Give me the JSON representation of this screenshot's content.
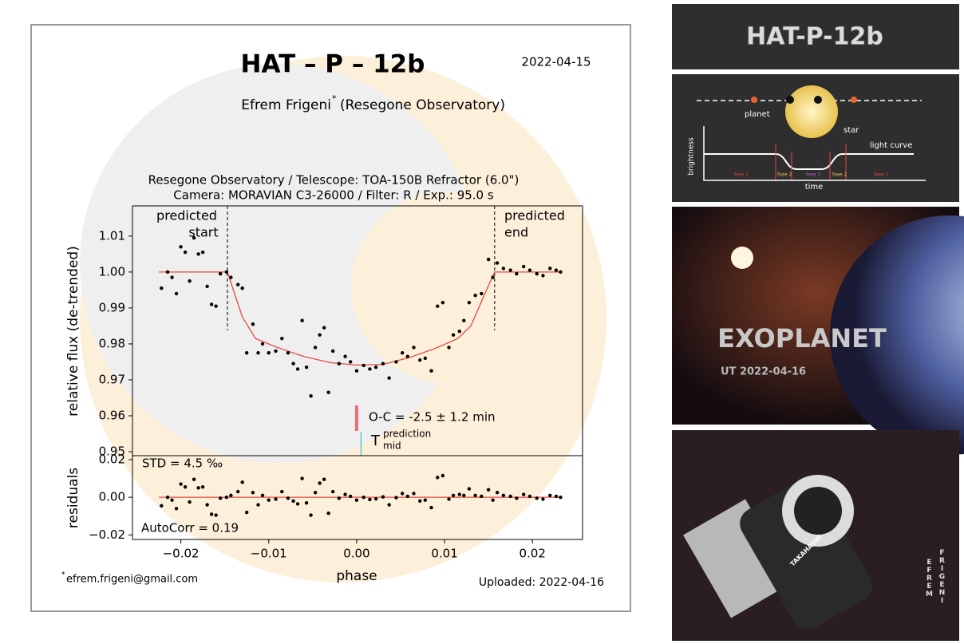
{
  "chart_data": [
    {
      "type": "scatter",
      "title": "HAT – P – 12b",
      "date": "2022-04-15",
      "author": "Efrem Frigeni",
      "author_mark": "*",
      "observatory": "(Resegone Observatory)",
      "subtitle": [
        "Resegone Observatory / Telescope: TOA-150B Refractor (6.0\")",
        "Camera: MORAVIAN C3-26000 / Filter: R / Exp.: 95.0 s"
      ],
      "ylabel": "relative flux (de-trended)",
      "annotations": {
        "start": [
          "predicted",
          "start"
        ],
        "end": [
          "predicted",
          "end"
        ],
        "oc": "O-C = -2.5 ± 1.2 min",
        "tmid": "T",
        "tmid_sup": "prediction",
        "tmid_sub": "mid"
      },
      "prediction_lines": [
        -0.0147,
        0.0157
      ],
      "markers": {
        "oc": 0.0,
        "tmid_prediction": 0.0005
      },
      "footer": {
        "mark": "*",
        "email": "efrem.frigeni@gmail.com",
        "uploaded": "Uploaded: 2022-04-16"
      },
      "xlim": [
        -0.0255,
        0.0257
      ],
      "ylim": [
        0.9489,
        1.0184
      ],
      "yticks": [
        0.95,
        0.96,
        0.97,
        0.98,
        0.99,
        {
          "value": 1.0,
          "label": "1.00"
        },
        1.01
      ],
      "x": [
        -0.0222,
        -0.0215,
        -0.021,
        -0.0205,
        -0.02,
        -0.0195,
        -0.019,
        -0.0185,
        -0.018,
        -0.0175,
        -0.017,
        -0.0165,
        -0.016,
        -0.0155,
        -0.0148,
        -0.0143,
        -0.0135,
        -0.013,
        -0.0125,
        -0.0118,
        -0.0112,
        -0.0107,
        -0.01,
        -0.0092,
        -0.0085,
        -0.0078,
        -0.0072,
        -0.0067,
        -0.0062,
        -0.0057,
        -0.0052,
        -0.0047,
        -0.0042,
        -0.0037,
        -0.0032,
        -0.0027,
        -0.002,
        -0.0013,
        -0.0007,
        0,
        0.0008,
        0.0015,
        0.0022,
        0.003,
        0.0037,
        0.0045,
        0.0052,
        0.0058,
        0.0065,
        0.0072,
        0.0078,
        0.0085,
        0.0092,
        0.0098,
        0.0105,
        0.011,
        0.0117,
        0.0122,
        0.0128,
        0.0135,
        0.0142,
        0.015,
        0.0155,
        0.016,
        0.0167,
        0.0175,
        0.0182,
        0.019,
        0.0197,
        0.0205,
        0.0212,
        0.022,
        0.0227,
        0.0232
      ],
      "series": [
        {
          "color": "#000000",
          "values": [
            0.9955,
            1.0,
            0.9985,
            0.994,
            1.007,
            1.0055,
            0.9975,
            1.0095,
            1.005,
            1.0055,
            0.996,
            0.991,
            0.9905,
            0.9995,
            1.0,
            0.9985,
            0.9965,
            0.9955,
            0.9775,
            0.9855,
            0.9775,
            0.98,
            0.9775,
            0.978,
            0.9815,
            0.9775,
            0.9745,
            0.973,
            0.9865,
            0.9735,
            0.9655,
            0.979,
            0.9825,
            0.9845,
            0.9665,
            0.978,
            0.9745,
            0.9765,
            0.975,
            0.9725,
            0.974,
            0.973,
            0.9735,
            0.9745,
            0.9705,
            0.975,
            0.9775,
            0.9765,
            0.979,
            0.9755,
            0.976,
            0.9725,
            0.9905,
            0.9915,
            0.979,
            0.9825,
            0.9835,
            0.9865,
            0.9915,
            0.9935,
            0.994,
            1.0035,
            0.9985,
            1.0025,
            1.001,
            1.0005,
            0.9995,
            1.0015,
            1.0005,
            0.9995,
            0.999,
            1.001,
            1.0005,
            1.0
          ]
        }
      ],
      "model": {
        "color": "#e8463c",
        "x": [
          -0.0225,
          -0.0147,
          -0.013,
          -0.0115,
          -0.009,
          -0.006,
          -0.003,
          0,
          0.003,
          0.006,
          0.009,
          0.0115,
          0.013,
          0.0145,
          0.0157,
          0.0232
        ],
        "values": [
          1.0,
          1.0,
          0.9875,
          0.9815,
          0.979,
          0.9765,
          0.9748,
          0.9741,
          0.9743,
          0.9762,
          0.9788,
          0.9815,
          0.985,
          0.9935,
          1.0,
          1.0
        ]
      }
    },
    {
      "type": "scatter",
      "ylabel": "residuals",
      "xlabel": "phase",
      "std": "STD = 4.5 ‰",
      "autocorr": "AutoCorr = 0.19",
      "xlim": [
        -0.0255,
        0.0257
      ],
      "ylim": [
        -0.0224,
        0.0221
      ],
      "xticks": [
        {
          "value": -0.02,
          "label": "−0.02"
        },
        {
          "value": -0.01,
          "label": "−0.01"
        },
        {
          "value": 0,
          "label": "0.00"
        },
        0.01,
        0.02
      ],
      "yticks": [
        {
          "value": -0.02,
          "label": "−0.02"
        },
        {
          "value": 0,
          "label": "0.00"
        },
        0.02
      ],
      "x": [
        -0.0222,
        -0.0215,
        -0.021,
        -0.0205,
        -0.02,
        -0.0195,
        -0.019,
        -0.0185,
        -0.018,
        -0.0175,
        -0.017,
        -0.0165,
        -0.016,
        -0.0155,
        -0.0148,
        -0.0143,
        -0.0135,
        -0.013,
        -0.0125,
        -0.0118,
        -0.0112,
        -0.0107,
        -0.01,
        -0.0092,
        -0.0085,
        -0.0078,
        -0.0072,
        -0.0067,
        -0.0062,
        -0.0057,
        -0.0052,
        -0.0047,
        -0.0042,
        -0.0037,
        -0.0032,
        -0.0027,
        -0.002,
        -0.0013,
        -0.0007,
        0,
        0.0008,
        0.0015,
        0.0022,
        0.003,
        0.0037,
        0.0045,
        0.0052,
        0.0058,
        0.0065,
        0.0072,
        0.0078,
        0.0085,
        0.0092,
        0.0098,
        0.0105,
        0.011,
        0.0117,
        0.0122,
        0.0128,
        0.0135,
        0.0142,
        0.015,
        0.0155,
        0.016,
        0.0167,
        0.0175,
        0.0182,
        0.019,
        0.0197,
        0.0205,
        0.0212,
        0.022,
        0.0227,
        0.0232
      ],
      "series": [
        {
          "color": "#000000",
          "values": [
            -0.0045,
            0,
            -0.0015,
            -0.006,
            0.007,
            0.0055,
            -0.0025,
            0.0095,
            0.005,
            0.0055,
            -0.004,
            -0.009,
            -0.0095,
            -0.0005,
            0,
            0.001,
            0.003,
            0.008,
            -0.008,
            0.0025,
            -0.004,
            0.001,
            -0.0015,
            -0.001,
            0.003,
            -0.0005,
            -0.002,
            -0.0035,
            0.01,
            -0.003,
            -0.0095,
            0.0025,
            0.0075,
            0.0095,
            -0.0085,
            0.003,
            -0.0005,
            0.0015,
            0.0005,
            -0.0015,
            0,
            -0.0012,
            -0.0008,
            0.0002,
            -0.004,
            -0.0002,
            0.002,
            0.0005,
            0.002,
            -0.002,
            -0.0015,
            -0.0055,
            0.0105,
            0.0115,
            -0.001,
            0.001,
            0.0015,
            0.001,
            0.0045,
            0.001,
            0.0005,
            0.004,
            -0.0015,
            0.0025,
            0.001,
            0.0005,
            -0.0005,
            0.0015,
            0.0005,
            -0.0005,
            -0.001,
            0.001,
            0.0005,
            0
          ]
        }
      ],
      "model": {
        "color": "#e8463c",
        "x": [
          -0.0225,
          0.0232
        ],
        "values": [
          0,
          0
        ]
      }
    }
  ],
  "side_panels": {
    "title": "HAT-P-12b",
    "diagram": {
      "planet": "planet",
      "star": "star",
      "curve": "light curve",
      "brightness": "brightness",
      "time": "time",
      "phases": [
        "fase 1",
        "fase 2",
        "fase 3",
        "fase 2",
        "fase 1"
      ]
    },
    "poster": {
      "title": "EXOPLANET",
      "date": "UT 2022-04-16"
    },
    "photo": {
      "first": "EFREM",
      "last": "FRIGENI",
      "brand": "TAKAHASHI"
    }
  }
}
